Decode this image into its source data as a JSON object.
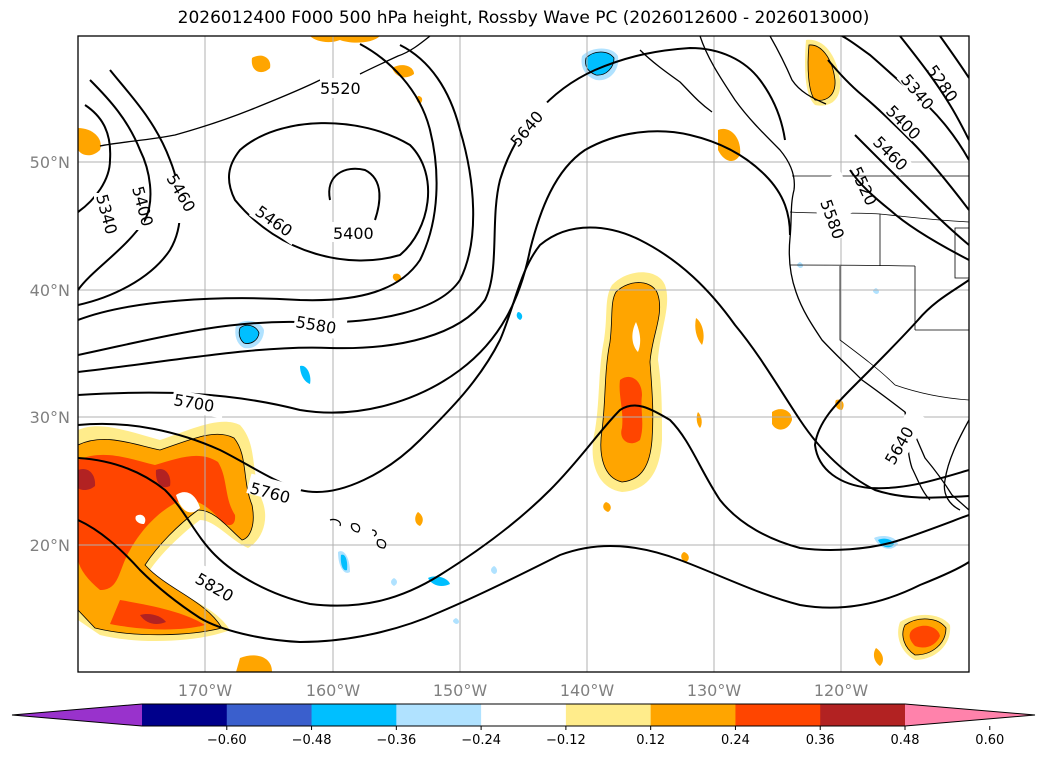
{
  "title": "2026012400 F000 500 hPa height, Rossby Wave PC (2026012600 - 2026013000)",
  "lat_labels": [
    "50°N",
    "40°N",
    "30°N",
    "20°N"
  ],
  "lon_labels": [
    "170°W",
    "160°W",
    "150°W",
    "140°W",
    "130°W",
    "120°W"
  ],
  "contour_labels": [
    "5280",
    "5340",
    "5400",
    "5460",
    "5520",
    "5580",
    "5640",
    "5700",
    "5760",
    "5820",
    "5340",
    "5400",
    "5460",
    "5400",
    "5460",
    "5520",
    "5580",
    "5640"
  ],
  "colorbar": {
    "ticks": [
      "−0.60",
      "−0.48",
      "−0.36",
      "−0.24",
      "−0.12",
      "0.12",
      "0.24",
      "0.36",
      "0.48",
      "0.60"
    ],
    "colors": [
      "#9932cc",
      "#00008b",
      "#3a5fcd",
      "#00bfff",
      "#b0e2ff",
      "#ffffff",
      "#ffec8b",
      "#ffa500",
      "#ff4500",
      "#b22222",
      "#ff82ab"
    ]
  }
}
